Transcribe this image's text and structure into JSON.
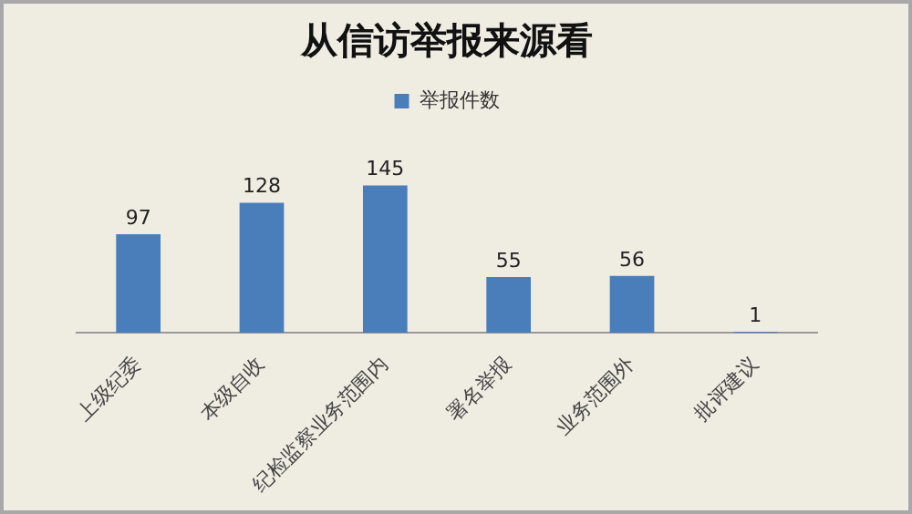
{
  "chart_data": {
    "type": "bar",
    "title": "从信访举报来源看",
    "categories": [
      "上级纪委",
      "本级自收",
      "纪检监察业务范围内",
      "署名举报",
      "业务范围外",
      "批评建议"
    ],
    "series": [
      {
        "name": "举报件数",
        "color": "#4a7ebb",
        "values": [
          97,
          128,
          145,
          55,
          56,
          1
        ]
      }
    ],
    "data_labels": true,
    "legend": "top",
    "grid": false,
    "tick_labels": "x"
  }
}
